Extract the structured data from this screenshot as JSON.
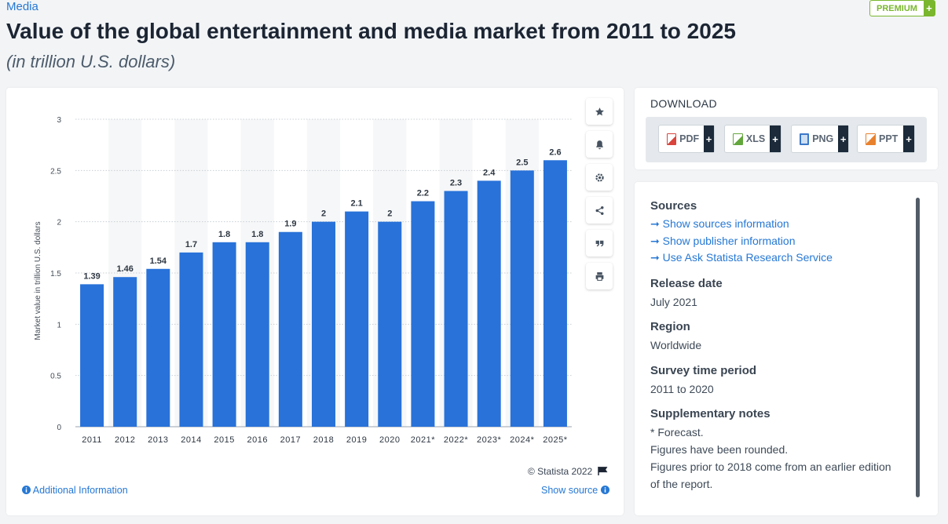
{
  "header": {
    "category": "Media",
    "premium_label": "PREMIUM",
    "premium_plus": "+",
    "title": "Value of the global entertainment and media market from 2011 to 2025",
    "subtitle": "(in trillion U.S. dollars)"
  },
  "chart_data": {
    "type": "bar",
    "categories": [
      "2011",
      "2012",
      "2013",
      "2014",
      "2015",
      "2016",
      "2017",
      "2018",
      "2019",
      "2020",
      "2021*",
      "2022*",
      "2023*",
      "2024*",
      "2025*"
    ],
    "values": [
      1.39,
      1.46,
      1.54,
      1.7,
      1.8,
      1.8,
      1.9,
      2,
      2.1,
      2,
      2.2,
      2.3,
      2.4,
      2.5,
      2.6
    ],
    "value_labels": [
      "1.39",
      "1.46",
      "1.54",
      "1.7",
      "1.8",
      "1.8",
      "1.9",
      "2",
      "2.1",
      "2",
      "2.2",
      "2.3",
      "2.4",
      "2.5",
      "2.6"
    ],
    "y_ticks": [
      "0",
      "0.5",
      "1",
      "1.5",
      "2",
      "2.5",
      "3"
    ],
    "ylim": [
      0,
      3
    ],
    "ylabel": "Market value in trillion U.S. dollars",
    "xlabel": "",
    "bar_color": "#2872d9",
    "grid": true
  },
  "chart_footer": {
    "copyright": "© Statista 2022",
    "additional_info": "Additional Information",
    "show_source": "Show source"
  },
  "side_buttons": {
    "icons": [
      "star-icon",
      "bell-icon",
      "gear-icon",
      "share-icon",
      "quote-icon",
      "print-icon"
    ]
  },
  "download": {
    "title": "DOWNLOAD",
    "buttons": [
      {
        "label": "PDF",
        "plus": "+",
        "color": "#d9443c"
      },
      {
        "label": "XLS",
        "plus": "+",
        "color": "#62a73b"
      },
      {
        "label": "PNG",
        "plus": "+",
        "color": "#3c79c9"
      },
      {
        "label": "PPT",
        "plus": "+",
        "color": "#e8812d"
      }
    ]
  },
  "info": {
    "sources": {
      "heading": "Sources",
      "links": [
        "Show sources information",
        "Show publisher information",
        "Use Ask Statista Research Service"
      ]
    },
    "release_date": {
      "heading": "Release date",
      "value": "July 2021"
    },
    "region": {
      "heading": "Region",
      "value": "Worldwide"
    },
    "survey_period": {
      "heading": "Survey time period",
      "value": "2011 to 2020"
    },
    "notes": {
      "heading": "Supplementary notes",
      "lines": [
        "* Forecast.",
        "Figures have been rounded.",
        "Figures prior to 2018 come from an earlier edition",
        "of the report."
      ]
    }
  },
  "colors": {
    "accent": "#2678d4",
    "premium": "#7ab72e"
  }
}
